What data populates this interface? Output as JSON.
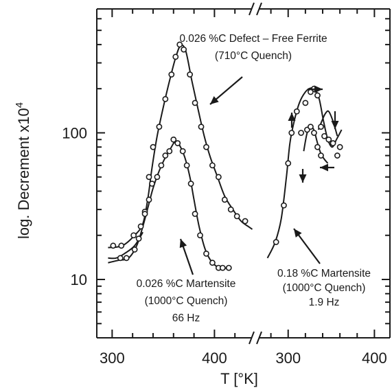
{
  "chart_data": {
    "type": "line",
    "title": "",
    "xlabel": "T [°K]",
    "ylabel": "log. Decrement  x10",
    "ylabel_superscript": "4",
    "yscale": "log",
    "ylim": [
      4,
      700
    ],
    "y_ticks": [
      10,
      100
    ],
    "y_tick_labels": [
      "10",
      "100"
    ],
    "grid": false,
    "broken_x_axis": true,
    "panels": [
      {
        "name": "left",
        "xlim": [
          285,
          440
        ],
        "x_ticks": [
          300,
          400
        ],
        "x_tick_labels": [
          "300",
          "400"
        ],
        "series": [
          {
            "label": "0.026 %C Defect – Free Ferrite",
            "points": [
              [
                301,
                17
              ],
              [
                309,
                17
              ],
              [
                321,
                20
              ],
              [
                328,
                23
              ],
              [
                332,
                29
              ],
              [
                336,
                50
              ],
              [
                340,
                80
              ],
              [
                346,
                110
              ],
              [
                352,
                170
              ],
              [
                358,
                250
              ],
              [
                362,
                330
              ],
              [
                366,
                400
              ],
              [
                370,
                370
              ],
              [
                376,
                250
              ],
              [
                381,
                160
              ],
              [
                387,
                110
              ],
              [
                392,
                80
              ],
              [
                398,
                60
              ],
              [
                404,
                50
              ],
              [
                410,
                35
              ],
              [
                416,
                30
              ],
              [
                422,
                27
              ],
              [
                430,
                25
              ]
            ],
            "curve": [
              [
                296,
                16.5
              ],
              [
                310,
                17
              ],
              [
                322,
                20
              ],
              [
                330,
                24
              ],
              [
                335,
                36
              ],
              [
                339,
                58
              ],
              [
                344,
                95
              ],
              [
                350,
                150
              ],
              [
                356,
                225
              ],
              [
                362,
                325
              ],
              [
                367,
                395
              ],
              [
                372,
                360
              ],
              [
                378,
                225
              ],
              [
                384,
                145
              ],
              [
                390,
                95
              ],
              [
                396,
                68
              ],
              [
                403,
                50
              ],
              [
                410,
                37
              ],
              [
                418,
                30
              ],
              [
                426,
                25
              ],
              [
                433,
                23
              ],
              [
                437,
                22
              ]
            ]
          },
          {
            "label": "0.026 %C Martensite",
            "points": [
              [
                308,
                14
              ],
              [
                314,
                14
              ],
              [
                322,
                16
              ],
              [
                326,
                19
              ],
              [
                332,
                28
              ],
              [
                336,
                35
              ],
              [
                339,
                45
              ],
              [
                344,
                50
              ],
              [
                348,
                60
              ],
              [
                352,
                70
              ],
              [
                356,
                75
              ],
              [
                360,
                90
              ],
              [
                364,
                85
              ],
              [
                369,
                75
              ],
              [
                373,
                60
              ],
              [
                377,
                45
              ],
              [
                381,
                28
              ],
              [
                386,
                20
              ],
              [
                392,
                15
              ],
              [
                398,
                13
              ],
              [
                404,
                12
              ],
              [
                408,
                12
              ],
              [
                414,
                12
              ]
            ],
            "curve": [
              [
                296,
                13
              ],
              [
                306,
                13.5
              ],
              [
                316,
                14
              ],
              [
                324,
                17
              ],
              [
                330,
                23
              ],
              [
                335,
                31
              ],
              [
                340,
                42
              ],
              [
                346,
                55
              ],
              [
                352,
                68
              ],
              [
                357,
                78
              ],
              [
                362,
                88
              ],
              [
                366,
                82
              ],
              [
                371,
                68
              ],
              [
                376,
                50
              ],
              [
                380,
                35
              ],
              [
                385,
                23
              ],
              [
                391,
                16
              ],
              [
                398,
                13
              ],
              [
                406,
                12
              ],
              [
                416,
                12
              ]
            ]
          },
          {
            "label": "",
            "points": [],
            "curve": [
              [
                296,
                14
              ],
              [
                304,
                14
              ],
              [
                312,
                15
              ],
              [
                322,
                17
              ],
              [
                330,
                21
              ]
            ]
          }
        ]
      },
      {
        "name": "right",
        "xlim": [
          262,
          418
        ],
        "x_ticks": [
          300,
          400
        ],
        "x_tick_labels": [
          "300",
          "400"
        ],
        "series": [
          {
            "label": "0.18 %C Martensite",
            "points": [
              [
                286,
                18
              ],
              [
                295,
                32
              ],
              [
                300,
                62
              ],
              [
                304,
                100
              ],
              [
                310,
                140
              ],
              [
                315,
                100
              ],
              [
                320,
                160
              ],
              [
                326,
                190
              ],
              [
                330,
                200
              ],
              [
                334,
                180
              ],
              [
                338,
                110
              ],
              [
                342,
                95
              ],
              [
                347,
                90
              ],
              [
                352,
                85
              ],
              [
                357,
                70
              ],
              [
                360,
                80
              ]
            ],
            "curve": [
              [
                276,
                14
              ],
              [
                285,
                18
              ],
              [
                292,
                26
              ],
              [
                298,
                50
              ],
              [
                302,
                85
              ],
              [
                307,
                120
              ],
              [
                313,
                160
              ],
              [
                320,
                190
              ],
              [
                326,
                202
              ],
              [
                331,
                198
              ],
              [
                336,
                170
              ],
              [
                341,
                120
              ],
              [
                346,
                90
              ],
              [
                351,
                80
              ],
              [
                356,
                90
              ],
              [
                362,
                105
              ]
            ]
          },
          {
            "label": "",
            "points": [
              [
                322,
                105
              ],
              [
                326,
                110
              ],
              [
                330,
                100
              ],
              [
                334,
                80
              ],
              [
                338,
                70
              ]
            ],
            "curve": [
              [
                318,
                75
              ],
              [
                322,
                100
              ],
              [
                326,
                110
              ],
              [
                330,
                104
              ],
              [
                334,
                85
              ],
              [
                338,
                72
              ],
              [
                342,
                66
              ],
              [
                346,
                62
              ]
            ]
          },
          {
            "label": "",
            "points": [],
            "curve": [
              [
                335,
                105
              ],
              [
                339,
                120
              ],
              [
                343,
                135
              ],
              [
                347,
                140
              ],
              [
                352,
                120
              ],
              [
                357,
                95
              ]
            ]
          }
        ]
      }
    ],
    "annotations": [
      {
        "lines": [
          "0.026 %C Defect – Free Ferrite",
          "(710°C Quench)"
        ]
      },
      {
        "lines": [
          "0.026 %C Martensite",
          "(1000°C Quench)",
          "66 Hz"
        ]
      },
      {
        "lines": [
          "0.18 %C Martensite",
          "(1000°C Quench)",
          "1.9 Hz"
        ]
      }
    ]
  }
}
